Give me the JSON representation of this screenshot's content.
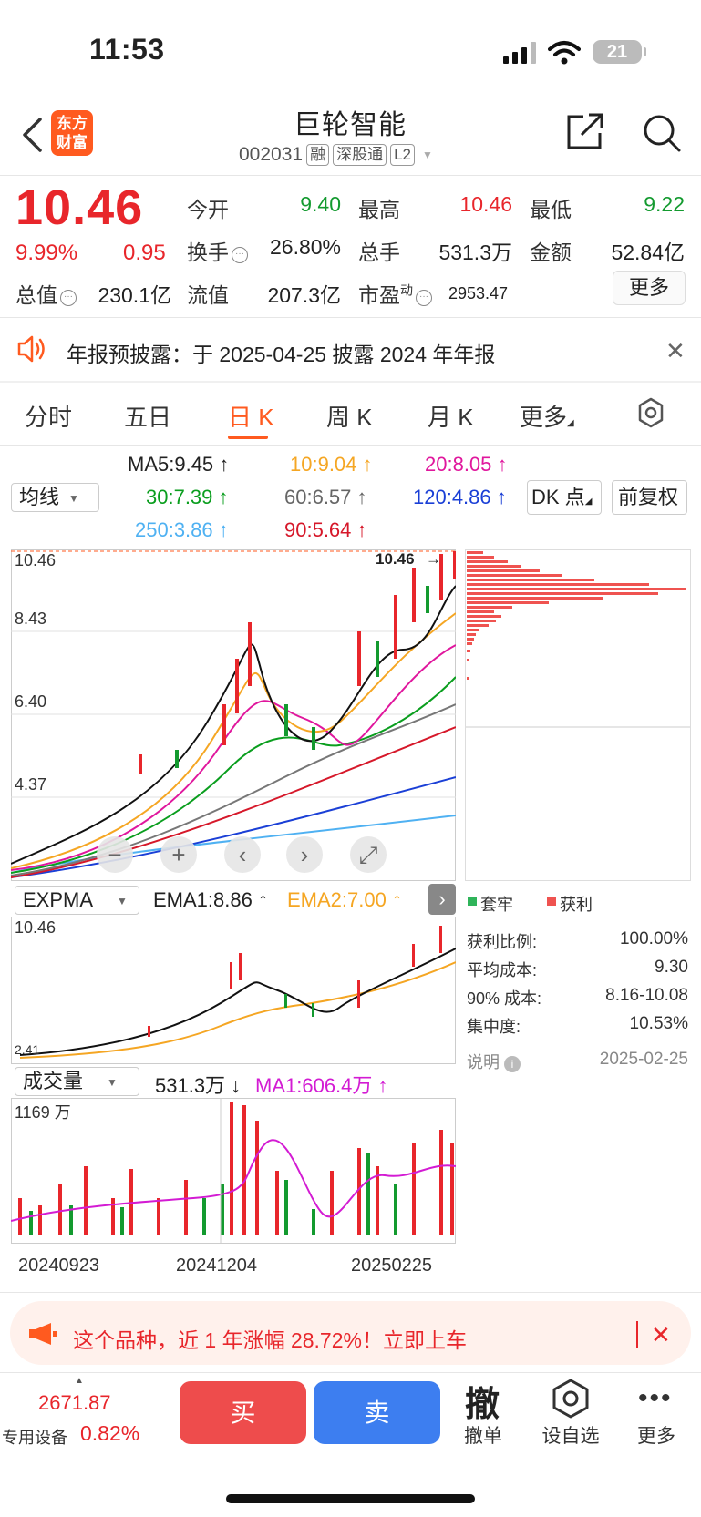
{
  "status_bar": {
    "time": "11:53",
    "battery": "21"
  },
  "header": {
    "logo": "东方\n财富",
    "name": "巨轮智能",
    "code": "002031",
    "tags": [
      "融",
      "深股通",
      "L2"
    ]
  },
  "quote": {
    "price": "10.46",
    "change_pct": "9.99%",
    "change_amt": "0.95",
    "fields": [
      {
        "label": "今开",
        "value": "9.40"
      },
      {
        "label": "最高",
        "value": "10.46"
      },
      {
        "label": "最低",
        "value": "9.22"
      },
      {
        "label": "换手",
        "value": "26.80%"
      },
      {
        "label": "总手",
        "value": "531.3万"
      },
      {
        "label": "金额",
        "value": "52.84亿"
      },
      {
        "label": "总值",
        "value": "230.1亿"
      },
      {
        "label": "流值",
        "value": "207.3亿"
      },
      {
        "label": "市盈",
        "label_sup": "动",
        "value": "2953.47"
      }
    ],
    "more_label": "更多"
  },
  "notice": {
    "text": "年报预披露：于 2025-04-25 披露 2024 年年报"
  },
  "tabs": [
    "分时",
    "五日",
    "日 K",
    "周 K",
    "月 K",
    "更多"
  ],
  "ma_row": {
    "selector": "均线",
    "items": [
      {
        "text": "MA5:9.45",
        "color": "#222222"
      },
      {
        "text": "10:9.04",
        "color": "#f5a623"
      },
      {
        "text": "20:8.05",
        "color": "#e0179d"
      },
      {
        "text": "30:7.39",
        "color": "#0a9e1e"
      },
      {
        "text": "60:6.57",
        "color": "#666666"
      },
      {
        "text": "120:4.86",
        "color": "#1a3fd6"
      },
      {
        "text": "250:3.86",
        "color": "#4fb1f2"
      },
      {
        "text": "90:5.64",
        "color": "#d6182a"
      }
    ],
    "dk_label": "DK 点",
    "adjust_label": "前复权"
  },
  "main_chart": {
    "y_labels": [
      "10.46",
      "8.43",
      "6.40",
      "4.37"
    ],
    "price_tag": "10.46"
  },
  "expma": {
    "selector": "EXPMA",
    "ema1": "EMA1:8.86",
    "ema2": "EMA2:7.00",
    "y_top": "10.46",
    "y_bottom": "2.41"
  },
  "volume": {
    "selector": "成交量",
    "value": "531.3万",
    "ma1": "MA1:606.4万",
    "y_top": "1169 万",
    "dates": [
      "20240923",
      "20241204",
      "20250225"
    ]
  },
  "chip_panel": {
    "legend": [
      "套牢",
      "获利"
    ],
    "rows": [
      {
        "label": "获利比例:",
        "value": "100.00%"
      },
      {
        "label": "平均成本:",
        "value": "9.30"
      },
      {
        "label": "90% 成本:",
        "value": "8.16-10.08"
      },
      {
        "label": "集中度:",
        "value": "10.53%"
      }
    ],
    "note_label": "说明",
    "note_date": "2025-02-25"
  },
  "promo": {
    "text": "这个品种，近 1 年涨幅 28.72%！立即上车"
  },
  "bottom_bar": {
    "index_value": "2671.87",
    "index_label": "专用设备",
    "index_pct": "0.82%",
    "buy": "买",
    "sell": "卖",
    "cancel_glyph": "撤",
    "cancel": "撤单",
    "watch": "设自选",
    "more": "更多"
  }
}
